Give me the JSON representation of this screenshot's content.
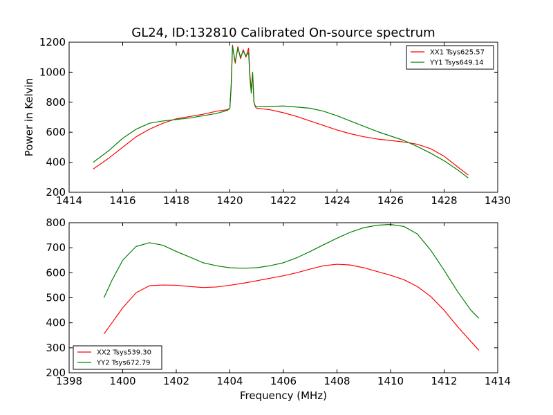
{
  "figure": {
    "title": "GL24, ID:132810 Calibrated On-source spectrum"
  },
  "chart_data": [
    {
      "type": "line",
      "title": "GL24, ID:132810 Calibrated On-source spectrum",
      "xlabel": "",
      "ylabel": "Power in Kelvin",
      "xlim": [
        1414,
        1430
      ],
      "ylim": [
        200,
        1200
      ],
      "xticks": [
        1414,
        1416,
        1418,
        1420,
        1422,
        1424,
        1426,
        1428,
        1430
      ],
      "yticks": [
        200,
        400,
        600,
        800,
        1000,
        1200
      ],
      "grid": false,
      "legend_position": "top-right",
      "series": [
        {
          "name": "XX1 Tsys625.57",
          "color": "#ff0000",
          "x": [
            1414.9,
            1415.5,
            1416.0,
            1416.5,
            1417.0,
            1417.5,
            1418.0,
            1418.5,
            1419.0,
            1419.5,
            1419.9,
            1420.0,
            1420.05,
            1420.1,
            1420.2,
            1420.3,
            1420.4,
            1420.5,
            1420.6,
            1420.7,
            1420.75,
            1420.8,
            1420.85,
            1420.9,
            1420.95,
            1421.0,
            1421.5,
            1422.0,
            1422.5,
            1423.0,
            1423.5,
            1424.0,
            1424.5,
            1425.0,
            1425.5,
            1426.0,
            1426.5,
            1427.0,
            1427.5,
            1428.0,
            1428.5,
            1428.9
          ],
          "y": [
            355,
            430,
            500,
            570,
            620,
            660,
            690,
            705,
            720,
            740,
            750,
            760,
            900,
            1180,
            1060,
            1170,
            1090,
            1150,
            1100,
            1160,
            980,
            880,
            990,
            800,
            770,
            760,
            750,
            730,
            705,
            675,
            645,
            615,
            590,
            570,
            555,
            545,
            535,
            520,
            490,
            440,
            370,
            315
          ]
        },
        {
          "name": "YY1 Tsys649.14",
          "color": "#008000",
          "x": [
            1414.9,
            1415.5,
            1416.0,
            1416.5,
            1417.0,
            1417.5,
            1418.0,
            1418.5,
            1419.0,
            1419.5,
            1419.9,
            1420.0,
            1420.05,
            1420.1,
            1420.2,
            1420.3,
            1420.4,
            1420.5,
            1420.6,
            1420.7,
            1420.75,
            1420.8,
            1420.85,
            1420.9,
            1420.95,
            1421.0,
            1421.5,
            1422.0,
            1422.5,
            1423.0,
            1423.5,
            1424.0,
            1424.5,
            1425.0,
            1425.5,
            1426.0,
            1426.5,
            1427.0,
            1427.5,
            1428.0,
            1428.5,
            1428.9
          ],
          "y": [
            400,
            480,
            560,
            620,
            660,
            675,
            685,
            695,
            710,
            725,
            745,
            760,
            920,
            1175,
            1070,
            1160,
            1100,
            1140,
            1110,
            1130,
            960,
            860,
            1000,
            800,
            775,
            770,
            772,
            775,
            768,
            760,
            740,
            710,
            675,
            640,
            605,
            575,
            545,
            505,
            460,
            410,
            350,
            295
          ]
        }
      ]
    },
    {
      "type": "line",
      "title": "",
      "xlabel": "Frequency (MHz)",
      "ylabel": "",
      "xlim": [
        1398,
        1414
      ],
      "ylim": [
        200,
        800
      ],
      "xticks": [
        1398,
        1400,
        1402,
        1404,
        1406,
        1408,
        1410,
        1412,
        1414
      ],
      "yticks": [
        200,
        300,
        400,
        500,
        600,
        700,
        800
      ],
      "grid": false,
      "legend_position": "bottom-left",
      "series": [
        {
          "name": "XX2 Tsys539.30",
          "color": "#ff0000",
          "x": [
            1399.3,
            1399.6,
            1400.0,
            1400.5,
            1401.0,
            1401.5,
            1402.0,
            1402.5,
            1403.0,
            1403.5,
            1404.0,
            1404.5,
            1405.0,
            1405.5,
            1406.0,
            1406.5,
            1407.0,
            1407.5,
            1408.0,
            1408.5,
            1409.0,
            1409.5,
            1410.0,
            1410.5,
            1411.0,
            1411.5,
            1412.0,
            1412.5,
            1413.0,
            1413.3
          ],
          "y": [
            355,
            400,
            460,
            520,
            548,
            551,
            550,
            545,
            541,
            543,
            550,
            558,
            568,
            578,
            588,
            600,
            615,
            628,
            634,
            631,
            620,
            605,
            590,
            572,
            545,
            505,
            450,
            385,
            325,
            290
          ]
        },
        {
          "name": "YY2 Tsys672.79",
          "color": "#008000",
          "x": [
            1399.3,
            1399.6,
            1400.0,
            1400.5,
            1401.0,
            1401.5,
            1402.0,
            1402.5,
            1403.0,
            1403.5,
            1404.0,
            1404.5,
            1405.0,
            1405.5,
            1406.0,
            1406.5,
            1407.0,
            1407.5,
            1408.0,
            1408.5,
            1409.0,
            1409.5,
            1410.0,
            1410.5,
            1411.0,
            1411.5,
            1412.0,
            1412.5,
            1413.0,
            1413.3
          ],
          "y": [
            500,
            570,
            650,
            705,
            720,
            710,
            685,
            663,
            640,
            628,
            620,
            618,
            620,
            628,
            640,
            660,
            685,
            712,
            738,
            762,
            780,
            790,
            793,
            785,
            755,
            690,
            610,
            525,
            450,
            418
          ]
        }
      ]
    }
  ]
}
